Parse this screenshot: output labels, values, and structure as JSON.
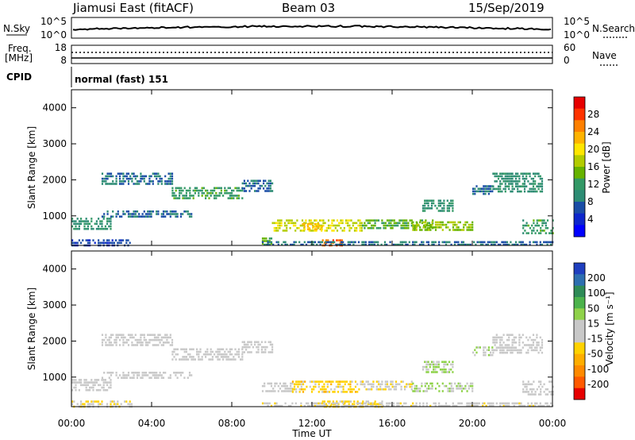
{
  "header": {
    "station": "Jiamusi East (fitACF)",
    "beam": "Beam 03",
    "date": "15/Sep/2019"
  },
  "summary": {
    "nsky_label": "N.Sky",
    "nsky_ticks": [
      "10^5",
      "10^0"
    ],
    "nsearch_label": "N.Search",
    "freq_label_1": "Freq.",
    "freq_label_2": "[MHz]",
    "freq_ticks": [
      "18",
      "8"
    ],
    "nave_ticks": [
      "60",
      "0"
    ],
    "nave_label": "Nave",
    "cpid_label": "CPID",
    "cpid_value": "normal (fast) 151"
  },
  "axes": {
    "ylabel": "Slant Range [km]",
    "xlabel": "Time UT",
    "yticks": [
      "4000",
      "3000",
      "2000",
      "1000"
    ],
    "xticks": [
      "00:00",
      "04:00",
      "08:00",
      "12:00",
      "16:00",
      "20:00",
      "00:00"
    ]
  },
  "colorbars": {
    "power": {
      "label": "Power [dB]",
      "ticks": [
        "28",
        "24",
        "20",
        "16",
        "12",
        "8",
        "4"
      ],
      "colors": [
        "#e60000",
        "#ff3300",
        "#ff8000",
        "#ffb300",
        "#ffe600",
        "#b3cc00",
        "#66b300",
        "#339966",
        "#2d8c74",
        "#1a4da6",
        "#0d26cc",
        "#0000ff"
      ]
    },
    "velocity": {
      "label": "Velocity [m s⁻¹]",
      "ticks": [
        "200",
        "100",
        "50",
        "15",
        "-15",
        "-50",
        "-100",
        "-200"
      ],
      "colors": [
        "#1f3fbf",
        "#2d6fb0",
        "#2e8b57",
        "#4cb34c",
        "#8fd24a",
        "#c8c8c8",
        "#c8c8c8",
        "#ffd200",
        "#ffae00",
        "#ff8a00",
        "#ff5a00",
        "#e60000"
      ]
    }
  },
  "chart_data": [
    {
      "type": "heatmap",
      "title": "Power",
      "xlabel": "Time UT",
      "ylabel": "Slant Range [km]",
      "xlim": [
        0,
        24
      ],
      "ylim": [
        180,
        4500
      ],
      "colorbar": "Power [dB]",
      "colorbar_range": [
        0,
        32
      ],
      "bands": [
        {
          "t0": 0.0,
          "t1": 3.0,
          "r0": 180,
          "r1": 350,
          "v": 6
        },
        {
          "t0": 0.0,
          "t1": 2.0,
          "r0": 650,
          "r1": 950,
          "v": 10
        },
        {
          "t0": 1.5,
          "t1": 6.0,
          "r0": 1000,
          "r1": 1150,
          "v": 8
        },
        {
          "t0": 1.5,
          "t1": 5.0,
          "r0": 1900,
          "r1": 2200,
          "v": 8
        },
        {
          "t0": 5.0,
          "t1": 8.5,
          "r0": 1500,
          "r1": 1800,
          "v": 12
        },
        {
          "t0": 8.5,
          "t1": 10.0,
          "r0": 1700,
          "r1": 2000,
          "v": 8
        },
        {
          "t0": 9.5,
          "t1": 10.0,
          "r0": 250,
          "r1": 400,
          "v": 14
        },
        {
          "t0": 10.0,
          "t1": 14.5,
          "r0": 600,
          "r1": 900,
          "v": 18
        },
        {
          "t0": 11.5,
          "t1": 12.5,
          "r0": 650,
          "r1": 800,
          "v": 22
        },
        {
          "t0": 12.5,
          "t1": 13.5,
          "r0": 200,
          "r1": 350,
          "v": 26
        },
        {
          "t0": 14.5,
          "t1": 18.0,
          "r0": 650,
          "r1": 900,
          "v": 14
        },
        {
          "t0": 17.0,
          "t1": 20.0,
          "r0": 600,
          "r1": 850,
          "v": 16
        },
        {
          "t0": 17.5,
          "t1": 19.0,
          "r0": 1150,
          "r1": 1450,
          "v": 10
        },
        {
          "t0": 20.0,
          "t1": 21.0,
          "r0": 1600,
          "r1": 1850,
          "v": 8
        },
        {
          "t0": 21.0,
          "t1": 23.5,
          "r0": 1700,
          "r1": 2200,
          "v": 10
        },
        {
          "t0": 22.5,
          "t1": 24.0,
          "r0": 500,
          "r1": 900,
          "v": 12
        },
        {
          "t0": 9.5,
          "t1": 24.0,
          "r0": 180,
          "r1": 300,
          "v": 8
        }
      ]
    },
    {
      "type": "heatmap",
      "title": "Velocity",
      "xlabel": "Time UT",
      "ylabel": "Slant Range [km]",
      "xlim": [
        0,
        24
      ],
      "ylim": [
        180,
        4500
      ],
      "colorbar": "Velocity [m s⁻¹]",
      "colorbar_range": [
        -250,
        250
      ],
      "bands": [
        {
          "t0": 0.0,
          "t1": 3.0,
          "r0": 180,
          "r1": 350,
          "v": -30
        },
        {
          "t0": 0.0,
          "t1": 2.0,
          "r0": 650,
          "r1": 950,
          "v": -5
        },
        {
          "t0": 1.5,
          "t1": 6.0,
          "r0": 1000,
          "r1": 1150,
          "v": 0
        },
        {
          "t0": 1.5,
          "t1": 5.0,
          "r0": 1900,
          "r1": 2200,
          "v": 0
        },
        {
          "t0": 5.0,
          "t1": 8.5,
          "r0": 1500,
          "r1": 1800,
          "v": 0
        },
        {
          "t0": 8.5,
          "t1": 10.0,
          "r0": 1700,
          "r1": 2000,
          "v": 0
        },
        {
          "t0": 9.5,
          "t1": 11.0,
          "r0": 600,
          "r1": 850,
          "v": 0
        },
        {
          "t0": 11.0,
          "t1": 14.5,
          "r0": 600,
          "r1": 900,
          "v": -60
        },
        {
          "t0": 12.5,
          "t1": 15.5,
          "r0": 200,
          "r1": 350,
          "v": -50
        },
        {
          "t0": 14.5,
          "t1": 17.0,
          "r0": 650,
          "r1": 900,
          "v": -30
        },
        {
          "t0": 17.0,
          "t1": 20.0,
          "r0": 600,
          "r1": 850,
          "v": 40
        },
        {
          "t0": 17.5,
          "t1": 19.0,
          "r0": 1150,
          "r1": 1450,
          "v": 45
        },
        {
          "t0": 20.0,
          "t1": 21.0,
          "r0": 1600,
          "r1": 1850,
          "v": 40
        },
        {
          "t0": 21.0,
          "t1": 23.5,
          "r0": 1700,
          "r1": 2200,
          "v": 0
        },
        {
          "t0": 22.5,
          "t1": 24.0,
          "r0": 500,
          "r1": 900,
          "v": 0
        },
        {
          "t0": 9.5,
          "t1": 24.0,
          "r0": 180,
          "r1": 300,
          "v": -20
        }
      ]
    }
  ]
}
